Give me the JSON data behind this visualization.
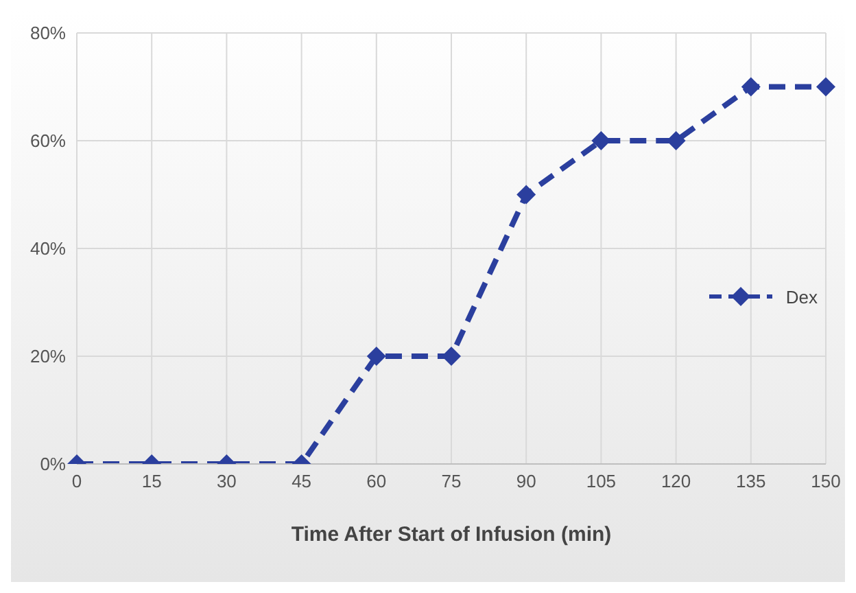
{
  "chart_data": {
    "type": "line",
    "xlabel": "Time After Start of Infusion (min)",
    "categories": [
      "0",
      "15",
      "30",
      "45",
      "60",
      "75",
      "90",
      "105",
      "120",
      "135",
      "150"
    ],
    "series": [
      {
        "name": "Dex",
        "color": "#2b3f9e",
        "values": [
          0,
          0,
          0,
          0,
          20,
          20,
          50,
          60,
          60,
          70,
          70
        ]
      }
    ],
    "ylim": [
      0,
      80
    ],
    "yticks": [
      {
        "value": 0,
        "label": "0%"
      },
      {
        "value": 20,
        "label": "20%"
      },
      {
        "value": 40,
        "label": "40%"
      },
      {
        "value": 60,
        "label": "60%"
      },
      {
        "value": 80,
        "label": "80%"
      }
    ],
    "grid": true,
    "legend": "right",
    "marker": "diamond",
    "line_style": "dashed"
  }
}
